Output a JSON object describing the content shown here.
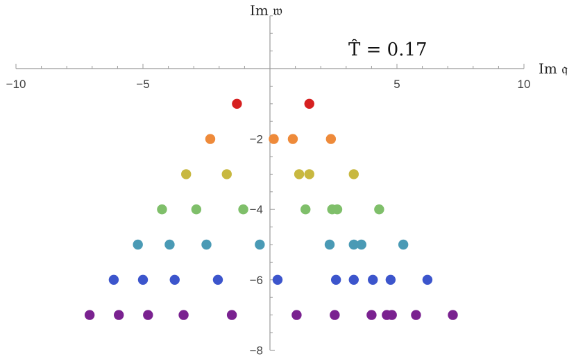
{
  "chart_data": {
    "type": "scatter",
    "title": "",
    "annotation": "T̂ = 0.17",
    "xlabel": "Im 𝔮",
    "ylabel": "Im 𝔴",
    "xlim": [
      -10,
      10
    ],
    "ylim": [
      -8,
      1.5
    ],
    "x_ticks": [
      -10,
      -5,
      5,
      10
    ],
    "y_ticks": [
      -2,
      -4,
      -6,
      -8
    ],
    "grid": false,
    "legend": "none",
    "series": [
      {
        "color": "#d62020",
        "points": [
          [
            -1.3,
            -1
          ],
          [
            1.55,
            -1
          ]
        ]
      },
      {
        "color": "#ee8a3a",
        "points": [
          [
            -2.35,
            -2
          ],
          [
            0.15,
            -2
          ],
          [
            0.9,
            -2
          ],
          [
            2.4,
            -2
          ]
        ]
      },
      {
        "color": "#c8b840",
        "points": [
          [
            -3.3,
            -3
          ],
          [
            -1.7,
            -3
          ],
          [
            1.15,
            -3
          ],
          [
            1.55,
            -3
          ],
          [
            3.3,
            -3
          ]
        ]
      },
      {
        "color": "#7fbf6a",
        "points": [
          [
            -4.25,
            -4
          ],
          [
            -2.9,
            -4
          ],
          [
            -1.05,
            -4
          ],
          [
            1.4,
            -4
          ],
          [
            2.45,
            -4
          ],
          [
            2.65,
            -4
          ],
          [
            4.3,
            -4
          ]
        ]
      },
      {
        "color": "#4a9ab5",
        "points": [
          [
            -5.2,
            -5
          ],
          [
            -3.95,
            -5
          ],
          [
            -2.5,
            -5
          ],
          [
            -0.4,
            -5
          ],
          [
            2.35,
            -5
          ],
          [
            3.3,
            -5
          ],
          [
            3.6,
            -5
          ],
          [
            5.25,
            -5
          ]
        ]
      },
      {
        "color": "#3c55cc",
        "points": [
          [
            -6.15,
            -6
          ],
          [
            -5.0,
            -6
          ],
          [
            -3.75,
            -6
          ],
          [
            -2.05,
            -6
          ],
          [
            0.3,
            -6
          ],
          [
            2.6,
            -6
          ],
          [
            3.3,
            -6
          ],
          [
            4.05,
            -6
          ],
          [
            4.75,
            -6
          ],
          [
            6.2,
            -6
          ]
        ]
      },
      {
        "color": "#7a2290",
        "points": [
          [
            -7.1,
            -7
          ],
          [
            -5.95,
            -7
          ],
          [
            -4.8,
            -7
          ],
          [
            -3.4,
            -7
          ],
          [
            -1.5,
            -7
          ],
          [
            1.05,
            -7
          ],
          [
            2.55,
            -7
          ],
          [
            4.0,
            -7
          ],
          [
            4.6,
            -7
          ],
          [
            4.8,
            -7
          ],
          [
            5.75,
            -7
          ],
          [
            7.2,
            -7
          ]
        ]
      }
    ]
  }
}
